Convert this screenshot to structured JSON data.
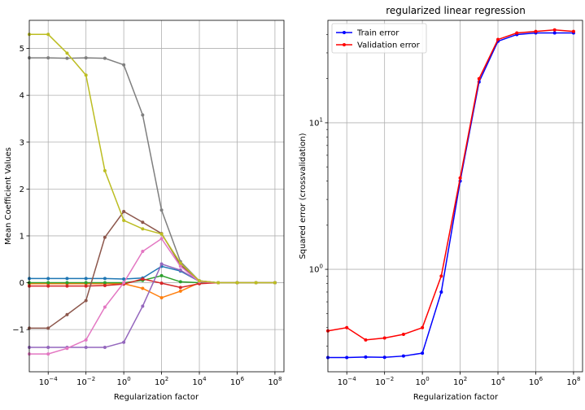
{
  "chart_data": [
    {
      "type": "line",
      "title": "",
      "xlabel": "Regularization factor",
      "ylabel": "Mean Coefficient Values",
      "xscale": "log",
      "xlim": [
        1e-05,
        300000000.0
      ],
      "ylim": [
        -1.9,
        5.6
      ],
      "grid": true,
      "x": [
        1e-05,
        0.0001,
        0.001,
        0.01,
        0.1,
        1,
        10,
        100,
        1000,
        10000,
        100000,
        1000000,
        10000000,
        100000000
      ],
      "xticks": [
        {
          "value": 0.0001,
          "base": "10",
          "exp": "−4"
        },
        {
          "value": 0.01,
          "base": "10",
          "exp": "−2"
        },
        {
          "value": 1,
          "base": "10",
          "exp": "0"
        },
        {
          "value": 100,
          "base": "10",
          "exp": "2"
        },
        {
          "value": 10000,
          "base": "10",
          "exp": "4"
        },
        {
          "value": 1000000,
          "base": "10",
          "exp": "6"
        },
        {
          "value": 100000000,
          "base": "10",
          "exp": "8"
        }
      ],
      "yticks": [
        {
          "value": -1,
          "label": "−1"
        },
        {
          "value": 0,
          "label": "0"
        },
        {
          "value": 1,
          "label": "1"
        },
        {
          "value": 2,
          "label": "2"
        },
        {
          "value": 3,
          "label": "3"
        },
        {
          "value": 4,
          "label": "4"
        },
        {
          "value": 5,
          "label": "5"
        }
      ],
      "series": [
        {
          "color": "#1f77b4",
          "values": [
            0.09,
            0.09,
            0.09,
            0.09,
            0.09,
            0.08,
            0.1,
            0.35,
            0.25,
            0.03,
            0.0,
            0.0,
            0.0,
            0.0
          ]
        },
        {
          "color": "#ff7f0e",
          "values": [
            -0.02,
            -0.02,
            -0.02,
            -0.02,
            -0.02,
            -0.02,
            -0.12,
            -0.32,
            -0.18,
            0.0,
            0.0,
            0.0,
            0.0,
            0.0
          ]
        },
        {
          "color": "#2ca02c",
          "values": [
            0.0,
            0.0,
            0.0,
            0.0,
            0.0,
            0.0,
            0.05,
            0.15,
            0.02,
            0.0,
            0.0,
            0.0,
            0.0,
            0.0
          ]
        },
        {
          "color": "#d62728",
          "values": [
            -0.07,
            -0.07,
            -0.07,
            -0.07,
            -0.06,
            -0.03,
            0.08,
            -0.01,
            -0.1,
            -0.02,
            0.0,
            0.0,
            0.0,
            0.0
          ]
        },
        {
          "color": "#9467bd",
          "values": [
            -1.38,
            -1.38,
            -1.38,
            -1.38,
            -1.38,
            -1.27,
            -0.5,
            0.4,
            0.27,
            0.03,
            0.0,
            0.0,
            0.0,
            0.0
          ]
        },
        {
          "color": "#8c564b",
          "values": [
            -0.97,
            -0.97,
            -0.68,
            -0.38,
            0.97,
            1.52,
            1.29,
            1.05,
            0.38,
            0.04,
            0.0,
            0.0,
            0.0,
            0.0
          ]
        },
        {
          "color": "#e377c2",
          "values": [
            -1.52,
            -1.52,
            -1.4,
            -1.22,
            -0.52,
            0.0,
            0.67,
            0.94,
            0.35,
            0.02,
            0.0,
            0.0,
            0.0,
            0.0
          ]
        },
        {
          "color": "#7f7f7f",
          "values": [
            4.8,
            4.8,
            4.79,
            4.8,
            4.79,
            4.65,
            3.58,
            1.55,
            0.45,
            0.04,
            0.0,
            0.0,
            0.0,
            0.0
          ]
        },
        {
          "color": "#bcbd22",
          "values": [
            5.3,
            5.3,
            4.9,
            4.43,
            2.39,
            1.33,
            1.15,
            1.04,
            0.42,
            0.04,
            0.0,
            0.0,
            0.0,
            0.0
          ]
        }
      ]
    },
    {
      "type": "line",
      "title": "regularized linear regression",
      "xlabel": "Regularization factor",
      "ylabel": "Squared error (crossvalidation)",
      "xscale": "log",
      "yscale": "log",
      "xlim": [
        1e-05,
        300000000.0
      ],
      "ylim": [
        0.2,
        50
      ],
      "grid": true,
      "legend": "top-left",
      "x": [
        1e-05,
        0.0001,
        0.001,
        0.01,
        0.1,
        1,
        10,
        100,
        1000,
        10000,
        100000,
        1000000,
        10000000,
        100000000
      ],
      "xticks": [
        {
          "value": 0.0001,
          "base": "10",
          "exp": "−4"
        },
        {
          "value": 0.01,
          "base": "10",
          "exp": "−2"
        },
        {
          "value": 1,
          "base": "10",
          "exp": "0"
        },
        {
          "value": 100,
          "base": "10",
          "exp": "2"
        },
        {
          "value": 10000,
          "base": "10",
          "exp": "4"
        },
        {
          "value": 1000000,
          "base": "10",
          "exp": "6"
        },
        {
          "value": 100000000,
          "base": "10",
          "exp": "8"
        }
      ],
      "yticks": [
        {
          "value": 1,
          "base": "10",
          "exp": "0"
        },
        {
          "value": 10,
          "base": "10",
          "exp": "1"
        }
      ],
      "series": [
        {
          "name": "Train error",
          "color": "#0000ff",
          "values": [
            0.25,
            0.25,
            0.252,
            0.251,
            0.256,
            0.268,
            0.7,
            4.0,
            19.0,
            36.0,
            40.0,
            41.0,
            41.0,
            41.0
          ]
        },
        {
          "name": "Validation error",
          "color": "#ff0000",
          "values": [
            0.38,
            0.4,
            0.33,
            0.34,
            0.36,
            0.4,
            0.9,
            4.2,
            20.0,
            37.0,
            41.0,
            42.0,
            43.0,
            42.0
          ]
        }
      ]
    }
  ]
}
